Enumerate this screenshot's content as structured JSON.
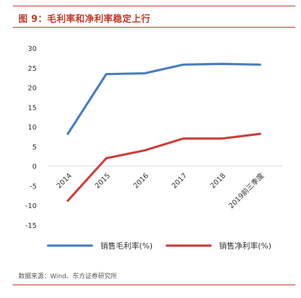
{
  "header": {
    "title": "图 9：毛利率和净利率稳定上行"
  },
  "footer": {
    "source": "数据来源：Wind、东方证券研究所"
  },
  "chart_data": {
    "type": "line",
    "title": "",
    "xlabel": "",
    "ylabel": "",
    "categories": [
      "2014",
      "2015",
      "2016",
      "2017",
      "2018",
      "2019前三季度"
    ],
    "series": [
      {
        "name": "销售毛利率(%)",
        "color": "#4a7cc0",
        "values": [
          8.2,
          23.4,
          23.6,
          25.8,
          26.0,
          25.8
        ]
      },
      {
        "name": "销售净利率(%)",
        "color": "#c9403c",
        "values": [
          -8.8,
          2.0,
          4.0,
          7.0,
          7.0,
          8.2
        ]
      }
    ],
    "ylim": [
      -15,
      30
    ],
    "yticks": [
      30,
      25,
      20,
      15,
      10,
      5,
      0,
      -5,
      -10,
      -15
    ],
    "grid": false,
    "legend": "bottom"
  }
}
